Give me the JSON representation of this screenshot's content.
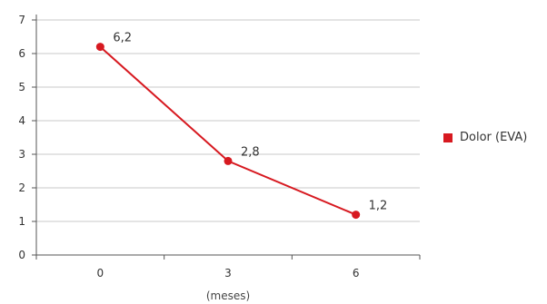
{
  "chart_data": {
    "type": "line",
    "categories": [
      "0",
      "3",
      "6"
    ],
    "series": [
      {
        "name": "Dolor (EVA)",
        "values": [
          6.2,
          2.8,
          1.2
        ],
        "labels": [
          "6,2",
          "2,8",
          "1,2"
        ]
      }
    ],
    "xlabel": "(meses)",
    "ylabel": "",
    "ylim": [
      0,
      7
    ],
    "yticks": [
      "0",
      "1",
      "2",
      "3",
      "4",
      "5",
      "6",
      "7"
    ],
    "grid": true,
    "legend_position": "right",
    "colors": {
      "series": "#d71920",
      "grid": "#c8c8c8",
      "axis": "#555555"
    }
  }
}
